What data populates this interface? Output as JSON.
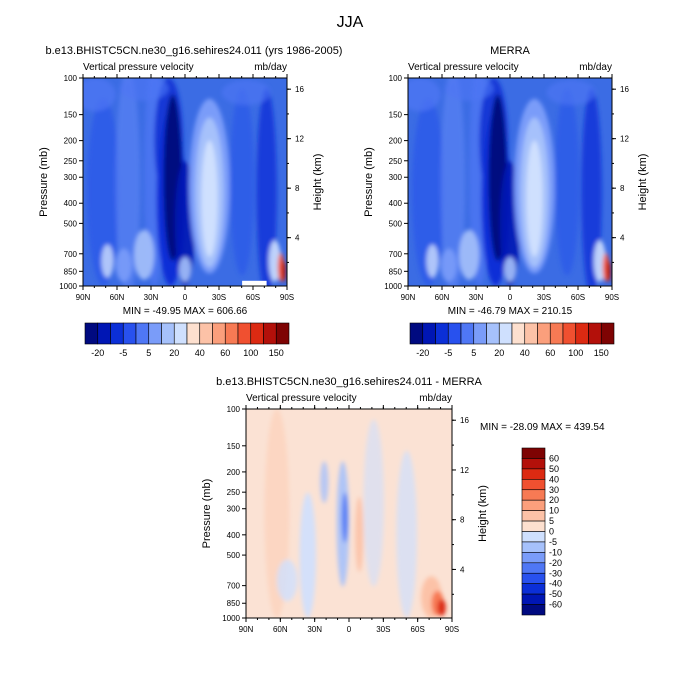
{
  "figure": {
    "title": "JJA"
  },
  "panels": [
    {
      "title": "b.e13.BHISTC5CN.ne30_g16.sehires24.011 (yrs 1986-2005)",
      "left_label": "Vertical pressure velocity",
      "right_label": "mb/day",
      "ylabel": "Pressure (mb)",
      "ylabel_right": "Height (km)",
      "stats": "MIN = -49.95  MAX = 606.66",
      "kind": "mean",
      "bg": "#3b6ce4",
      "seed": 1
    },
    {
      "title": "MERRA",
      "left_label": "Vertical pressure velocity",
      "right_label": "mb/day",
      "ylabel": "Pressure (mb)",
      "ylabel_right": "Height (km)",
      "stats": "MIN = -46.79  MAX = 210.15",
      "kind": "mean",
      "bg": "#3b6ce4",
      "seed": 2
    },
    {
      "title": "b.e13.BHISTC5CN.ne30_g16.sehires24.011 - MERRA",
      "left_label": "Vertical pressure velocity",
      "right_label": "mb/day",
      "ylabel": "Pressure (mb)",
      "ylabel_right": "Height (km)",
      "stats": "MIN = -28.09  MAX = 439.54",
      "kind": "diff",
      "bg": "#fbe2d4",
      "seed": 3
    }
  ],
  "axes": {
    "x_ticks": [
      "90N",
      "60N",
      "30N",
      "0",
      "30S",
      "60S",
      "90S"
    ],
    "p_ticks": [
      100,
      150,
      200,
      250,
      300,
      400,
      500,
      700,
      850,
      1000
    ],
    "h_ticks": [
      4,
      8,
      12,
      16
    ],
    "ylim": [
      1000,
      100
    ],
    "xlim": [
      "90N",
      "90S"
    ]
  },
  "colorbars": {
    "mean": {
      "labels": [
        "-20",
        "-5",
        "5",
        "20",
        "40",
        "60",
        "100",
        "150"
      ],
      "colors": [
        "#000a80",
        "#0016b4",
        "#0b2fd7",
        "#2851ee",
        "#4f77f5",
        "#7a9cf9",
        "#a6c1fb",
        "#cfe0fe",
        "#fde0cf",
        "#fcc2a7",
        "#fb9f7c",
        "#f77a54",
        "#f05030",
        "#dc2a12",
        "#b3100a",
        "#7e0303"
      ]
    },
    "diff": {
      "labels": [
        "60",
        "50",
        "40",
        "30",
        "20",
        "10",
        "5",
        "0",
        "-5",
        "-10",
        "-20",
        "-30",
        "-40",
        "-50",
        "-60"
      ],
      "colors": [
        "#7e0303",
        "#b3100a",
        "#dc2a12",
        "#f05030",
        "#f77a54",
        "#fb9f7c",
        "#fcc2a7",
        "#fde0cf",
        "#cfe0fe",
        "#a6c1fb",
        "#7a9cf9",
        "#4f77f5",
        "#2851ee",
        "#0b2fd7",
        "#0016b4",
        "#000a80"
      ]
    }
  }
}
